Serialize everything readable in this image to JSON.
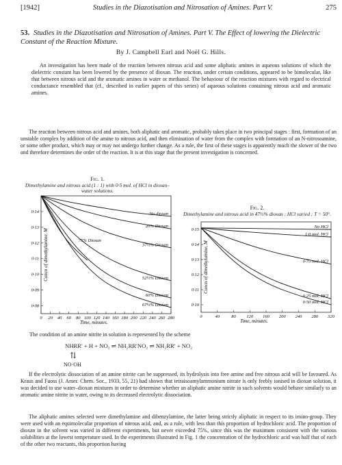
{
  "header": {
    "left": "[1942]",
    "title": "Studies in the Diazotisation and Nitrosation of Amines.  Part V.",
    "page": "275"
  },
  "article": {
    "number": "53.",
    "title": "Studies in the Diazotisation and Nitrosation of Amines.  Part V.  The Effect of lowering the Dielectric Constant of the Reaction Mixture.",
    "authors": "By J. Campbell Earl and Noël G. Hills."
  },
  "abstract": "An investigation has been made of the reaction between nitrous acid and some aliphatic amines in aqueous solutions of which the dielectric constant has been lowered by the presence of dioxan.  The reaction, under certain conditions, appeared to be bimolecular, like that between nitrous acid and the aromatic amines in water or methanol.  The behaviour of the reaction mixtures with regard to electrical conductance resembled that (cf., described in earlier papers of this series) of aqueous solutions containing nitrous acid and aromatic amines.",
  "para1": "The reaction between nitrous acid and amines, both aliphatic and aromatic, probably takes place in two principal stages :  first, formation of an unstable complex by addition of the amine to nitrous acid, and then elimination of water from the complex with formation of an N-nitrosoamine, or some other product, which may or may not undergo further change.  As a rule, the first of these stages is apparently much the slower of the two and therefore determines the order of the reaction.  It is at this stage that the present investigation is concerned.",
  "fig1": {
    "number": "Fig. 1.",
    "caption": "Dimethylamine and nitrous acid (1 : 1) with 0·5 mol. of HCl in dioxan–water solutions."
  },
  "fig2": {
    "number": "Fig. 2.",
    "caption": "Dimethylamine and nitrous acid in 47½% dioxan : HCl varied ; T = 50°."
  },
  "chart_data": [
    {
      "type": "line",
      "title": "",
      "xlabel": "Time, minutes.",
      "ylabel": "Concn of dimethylamine, M",
      "xlim": [
        0,
        280
      ],
      "ylim": [
        0.075,
        0.15
      ],
      "xticks": [
        0,
        20,
        40,
        60,
        80,
        100,
        120,
        140,
        160,
        180,
        200,
        220,
        240,
        260,
        280
      ],
      "yticks": [
        0.08,
        0.09,
        0.1,
        0.11,
        0.12,
        0.13,
        0.14
      ],
      "ytick_labels": [
        "0·08",
        "0·09",
        "0·10",
        "0·11",
        "0·12",
        "0·13",
        "0·14"
      ],
      "series": [
        {
          "name": "No dioxan",
          "x": [
            0,
            60,
            120,
            180,
            240,
            280
          ],
          "y": [
            0.15,
            0.146,
            0.143,
            0.14,
            0.138,
            0.137
          ]
        },
        {
          "name": "20% Dioxan",
          "x": [
            0,
            60,
            120,
            180,
            240,
            280
          ],
          "y": [
            0.15,
            0.143,
            0.138,
            0.134,
            0.131,
            0.129
          ]
        },
        {
          "name": "37½% Dioxan",
          "x": [
            0,
            60,
            120,
            180,
            240,
            280
          ],
          "y": [
            0.15,
            0.138,
            0.129,
            0.123,
            0.119,
            0.117
          ]
        },
        {
          "name": "75% Dioxan",
          "x": [
            0,
            20,
            40,
            60,
            80,
            100
          ],
          "y": [
            0.15,
            0.138,
            0.128,
            0.12,
            0.114,
            0.109
          ]
        },
        {
          "name": "52½% Dioxan",
          "x": [
            0,
            60,
            120,
            180,
            240,
            280
          ],
          "y": [
            0.15,
            0.128,
            0.114,
            0.105,
            0.099,
            0.096
          ]
        },
        {
          "name": "60% Dioxan",
          "x": [
            0,
            60,
            120,
            180,
            240,
            280
          ],
          "y": [
            0.15,
            0.122,
            0.104,
            0.094,
            0.088,
            0.085
          ]
        },
        {
          "name": "67½% Dioxan",
          "x": [
            0,
            60,
            120,
            180,
            240,
            280
          ],
          "y": [
            0.15,
            0.118,
            0.098,
            0.088,
            0.082,
            0.079
          ]
        }
      ],
      "grid": false
    },
    {
      "type": "line",
      "title": "",
      "xlabel": "Time, minutes.",
      "ylabel": "Concn of dimethylamine, M",
      "xlim": [
        0,
        320
      ],
      "ylim": [
        0.095,
        0.155
      ],
      "xticks": [
        0,
        40,
        80,
        120,
        160,
        200,
        240,
        280,
        320
      ],
      "yticks": [
        0.1,
        0.11,
        0.12,
        0.13,
        0.14,
        0.15
      ],
      "ytick_labels": [
        "0·10",
        "0·11",
        "0·12",
        "0·13",
        "0·14",
        "0·15"
      ],
      "series": [
        {
          "name": "No HCl",
          "x": [
            0,
            80,
            160,
            240,
            320
          ],
          "y": [
            0.151,
            0.1508,
            0.1505,
            0.1502,
            0.15
          ]
        },
        {
          "name": "1·0 mol. HCl",
          "x": [
            0,
            80,
            160,
            240,
            320
          ],
          "y": [
            0.151,
            0.149,
            0.1475,
            0.146,
            0.145
          ]
        },
        {
          "name": "0·75 mol. HCl",
          "x": [
            0,
            80,
            160,
            240,
            320
          ],
          "y": [
            0.151,
            0.143,
            0.136,
            0.131,
            0.127
          ]
        },
        {
          "name": "0·25 mol. HCl",
          "x": [
            0,
            80,
            160,
            240,
            320
          ],
          "y": [
            0.151,
            0.131,
            0.118,
            0.11,
            0.104
          ]
        },
        {
          "name": "0·50 mol. HCl",
          "x": [
            0,
            80,
            160,
            240,
            320
          ],
          "y": [
            0.151,
            0.128,
            0.114,
            0.106,
            0.1
          ]
        }
      ],
      "grid": false
    }
  ],
  "condition": "The condition of an amine nitrite in solution is represented by the scheme",
  "equation": "NHRR′ + H + NO₂ ⇌ NH₂RR′NO₂ ⇌ NH₂RR′ + NO₂",
  "equation_down": "⇅",
  "equation_sub": "NO·OH",
  "para2": "If the electrolytic dissociation of an amine nitrite can be suppressed, its hydrolysis into free amine and free nitrous acid will be favoured.  As Kraus and Fuoss (J. Amer. Chem. Soc., 1933, 55, 21) had shown that tetraisoamylammonium nitrate is only feebly ionised in dioxan solution, it was decided to use water–dioxan mixtures in order to determine whether an aliphatic amine nitrite in such solvents would behave similarly to an aromatic amine nitrite in water, owing to its decreased electrolytic dissociation.",
  "para3": "The aliphatic amines selected were dimethylamine and dibenzylamine, the latter being strictly aliphatic in respect to its imino-group.  They were used with an equimolecular proportion of nitrous acid, and, as a rule, with less than this proportion of hydrochloric acid.  The proportion of dioxan in the solvent was varied in different experiments, but never exceeded 75%, since this was the maximum consistent with the various solubilities at the lowest temperature used.  In the experiments illustrated in Fig. 1 the concentration of the hydrochloric acid was half that of each of the other two reactants, this proportion having"
}
